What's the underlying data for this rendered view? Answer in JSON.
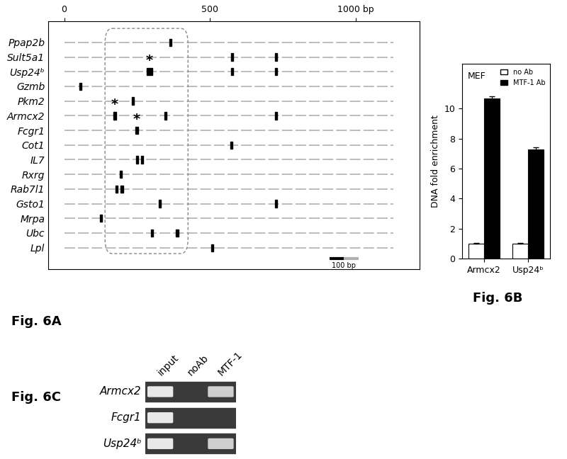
{
  "chart_data": [
    {
      "type": "scatter",
      "caption": "Fig. 6A",
      "marker": "bar",
      "color": "#000000",
      "categories": [
        "Ppap2b",
        "Sult5a1",
        "Usp24ᵇ",
        "Gzmb",
        "Pkm2",
        "Armcx2",
        "Fcgr1",
        "Cot1",
        "IL7",
        "Rxrg",
        "Rab7l1",
        "Gsto1",
        "Mrpa",
        "Ubc",
        "Lpl"
      ],
      "sites": [
        [
          365
        ],
        [
          577,
          728
        ],
        [
          288,
          298,
          577,
          728
        ],
        [
          56
        ],
        [
          235
        ],
        [
          174,
          347,
          728
        ],
        [
          249
        ],
        [
          574
        ],
        [
          251,
          267
        ],
        [
          195
        ],
        [
          179,
          198
        ],
        [
          328,
          728
        ],
        [
          126
        ],
        [
          302,
          388
        ],
        [
          509
        ]
      ],
      "xlim": [
        -55,
        1220
      ],
      "xticks": [
        0,
        500,
        {
          "value": 1000,
          "label": "1000 bp"
        }
      ],
      "highlight_region": [
        140,
        425
      ],
      "annotations": [
        {
          "category": "Usp24ᵇ",
          "x": 293,
          "text": "*"
        },
        {
          "category": "Armcx2",
          "x": 174,
          "text": "*"
        },
        {
          "category": "Fcgr1",
          "x": 249,
          "text": "*"
        }
      ],
      "scale_bar": {
        "value": 100,
        "label": "100 bp"
      }
    },
    {
      "type": "bar",
      "caption": "Fig. 6B",
      "title": "MEF",
      "ylabel": "DNA fold enrichment",
      "categories": [
        "Armcx2",
        "Usp24ᵇ"
      ],
      "series": [
        {
          "name": "no Ab",
          "color": "#ffffff",
          "values": [
            1.0,
            1.0
          ],
          "errors": [
            0.03,
            0.03
          ]
        },
        {
          "name": "MTF-1 Ab",
          "color": "#000000",
          "values": [
            10.7,
            7.3
          ],
          "errors": [
            0.15,
            0.1
          ]
        }
      ],
      "ylim": [
        0,
        13
      ],
      "yticks": [
        0,
        2,
        4,
        6,
        8,
        10
      ],
      "legend": "upper right"
    }
  ],
  "gel": {
    "caption": "Fig. 6C",
    "lanes": [
      "input",
      "noAb",
      "MTF-1"
    ],
    "rows": [
      {
        "name": "Armcx2",
        "bands": [
          true,
          false,
          true
        ]
      },
      {
        "name": "Fcgr1",
        "bands": [
          true,
          false,
          false
        ]
      },
      {
        "name": "Usp24ᵇ",
        "bands": [
          true,
          false,
          true
        ]
      }
    ]
  }
}
